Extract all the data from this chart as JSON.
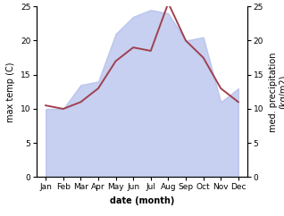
{
  "months": [
    "Jan",
    "Feb",
    "Mar",
    "Apr",
    "May",
    "Jun",
    "Jul",
    "Aug",
    "Sep",
    "Oct",
    "Nov",
    "Dec"
  ],
  "x": [
    0,
    1,
    2,
    3,
    4,
    5,
    6,
    7,
    8,
    9,
    10,
    11
  ],
  "temp_line": [
    10.5,
    10.0,
    11.0,
    13.0,
    17.0,
    19.0,
    18.5,
    25.5,
    20.0,
    17.5,
    13.0,
    11.0
  ],
  "precip_area": [
    10.0,
    10.0,
    13.5,
    14.0,
    21.0,
    23.5,
    24.5,
    24.0,
    20.0,
    20.5,
    11.0,
    13.0
  ],
  "temp_color": "#a04050",
  "precip_color": "#aab8e8",
  "precip_alpha": 0.65,
  "xlabel": "date (month)",
  "ylabel_left": "max temp (C)",
  "ylabel_right": "med. precipitation\n(kg/m2)",
  "ylim": [
    0,
    25
  ],
  "yticks": [
    0,
    5,
    10,
    15,
    20,
    25
  ],
  "bg_color": "#ffffff",
  "label_fontsize": 7,
  "tick_fontsize": 6.5,
  "line_width": 1.4
}
